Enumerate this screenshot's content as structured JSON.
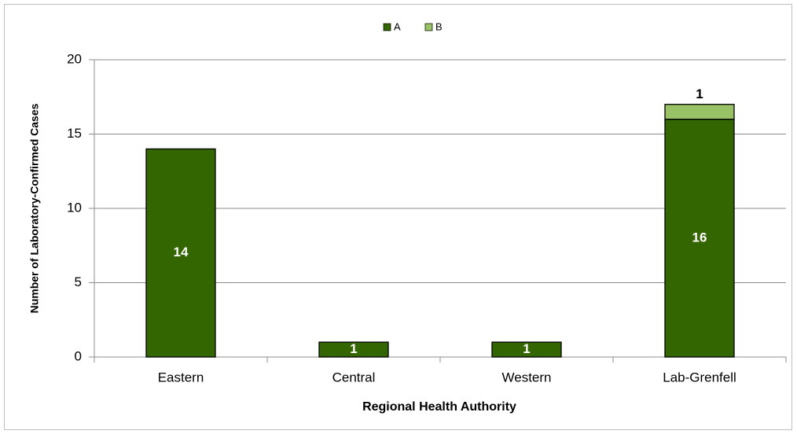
{
  "chart_data": {
    "type": "stacked-bar",
    "x_label": "Regional Health Authority",
    "y_label": "Number of Laboratory-Confirmed Cases",
    "categories": [
      "Eastern",
      "Central",
      "Western",
      "Lab-Grenfell"
    ],
    "series": [
      {
        "name": "A",
        "color": "#336600",
        "values": [
          14,
          1,
          1,
          16
        ]
      },
      {
        "name": "B",
        "color": "#99c266",
        "values": [
          null,
          null,
          null,
          1
        ]
      }
    ],
    "ylim": [
      0,
      20
    ],
    "yticks": [
      0,
      5,
      10,
      15,
      20
    ],
    "grid": true,
    "legend": "top"
  }
}
